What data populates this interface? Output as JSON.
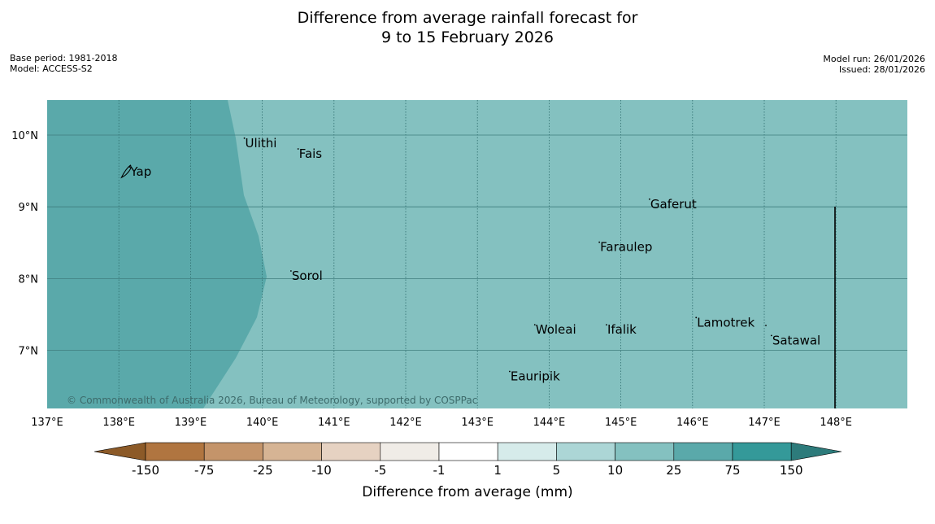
{
  "title_line1": "Difference from average rainfall forecast for",
  "title_line2": "9 to 15 February 2026",
  "meta_left": {
    "base_period": "Base period: 1981-2018",
    "model": "Model: ACCESS-S2"
  },
  "meta_right": {
    "model_run": "Model run: 26/01/2026",
    "issued": "Issued: 28/01/2026"
  },
  "map": {
    "lon_ticks": [
      {
        "value": 137,
        "label": "137°E"
      },
      {
        "value": 138,
        "label": "138°E"
      },
      {
        "value": 139,
        "label": "139°E"
      },
      {
        "value": 140,
        "label": "140°E"
      },
      {
        "value": 141,
        "label": "141°E"
      },
      {
        "value": 142,
        "label": "142°E"
      },
      {
        "value": 143,
        "label": "143°E"
      },
      {
        "value": 144,
        "label": "144°E"
      },
      {
        "value": 145,
        "label": "145°E"
      },
      {
        "value": 146,
        "label": "146°E"
      },
      {
        "value": 147,
        "label": "147°E"
      },
      {
        "value": 148,
        "label": "148°E"
      }
    ],
    "lat_ticks": [
      {
        "value": 10,
        "label": "10°N"
      },
      {
        "value": 9,
        "label": "9°N"
      },
      {
        "value": 8,
        "label": "8°N"
      },
      {
        "value": 7,
        "label": "7°N"
      }
    ],
    "places": [
      {
        "name": "Yap",
        "lon": 138.15,
        "lat": 9.5
      },
      {
        "name": "Ulithi",
        "lon": 139.75,
        "lat": 9.9
      },
      {
        "name": "Fais",
        "lon": 140.5,
        "lat": 9.75
      },
      {
        "name": "Gaferut",
        "lon": 145.4,
        "lat": 9.05
      },
      {
        "name": "Faraulep",
        "lon": 144.7,
        "lat": 8.45
      },
      {
        "name": "Sorol",
        "lon": 140.4,
        "lat": 8.05
      },
      {
        "name": "Lamotrek",
        "lon": 146.05,
        "lat": 7.4
      },
      {
        "name": "Woleai",
        "lon": 143.8,
        "lat": 7.3
      },
      {
        "name": "Ifalik",
        "lon": 144.8,
        "lat": 7.3
      },
      {
        "name": "Satawal",
        "lon": 147.1,
        "lat": 7.15
      },
      {
        "name": "Eauripik",
        "lon": 143.45,
        "lat": 6.65
      }
    ],
    "copyright": "© Commonwealth of Australia 2026, Bureau of Meteorology, supported by COSPPac",
    "field": {
      "west_category": "25 to 75",
      "east_category": "10 to 25"
    }
  },
  "colorbar": {
    "title": "Difference from average (mm)",
    "boundaries": [
      "-150",
      "-75",
      "-25",
      "-10",
      "-5",
      "-1",
      "1",
      "5",
      "10",
      "25",
      "75",
      "150"
    ],
    "colors": [
      "#8c5a28",
      "#b07540",
      "#c4946a",
      "#d6b494",
      "#e6d2c2",
      "#f0ece7",
      "#ffffff",
      "#d6ebea",
      "#acd6d6",
      "#84c1c0",
      "#5aa9aa",
      "#349999",
      "#2d7b7b"
    ],
    "field_colors": {
      "west": "#5aa9aa",
      "east": "#84c1c0"
    }
  }
}
